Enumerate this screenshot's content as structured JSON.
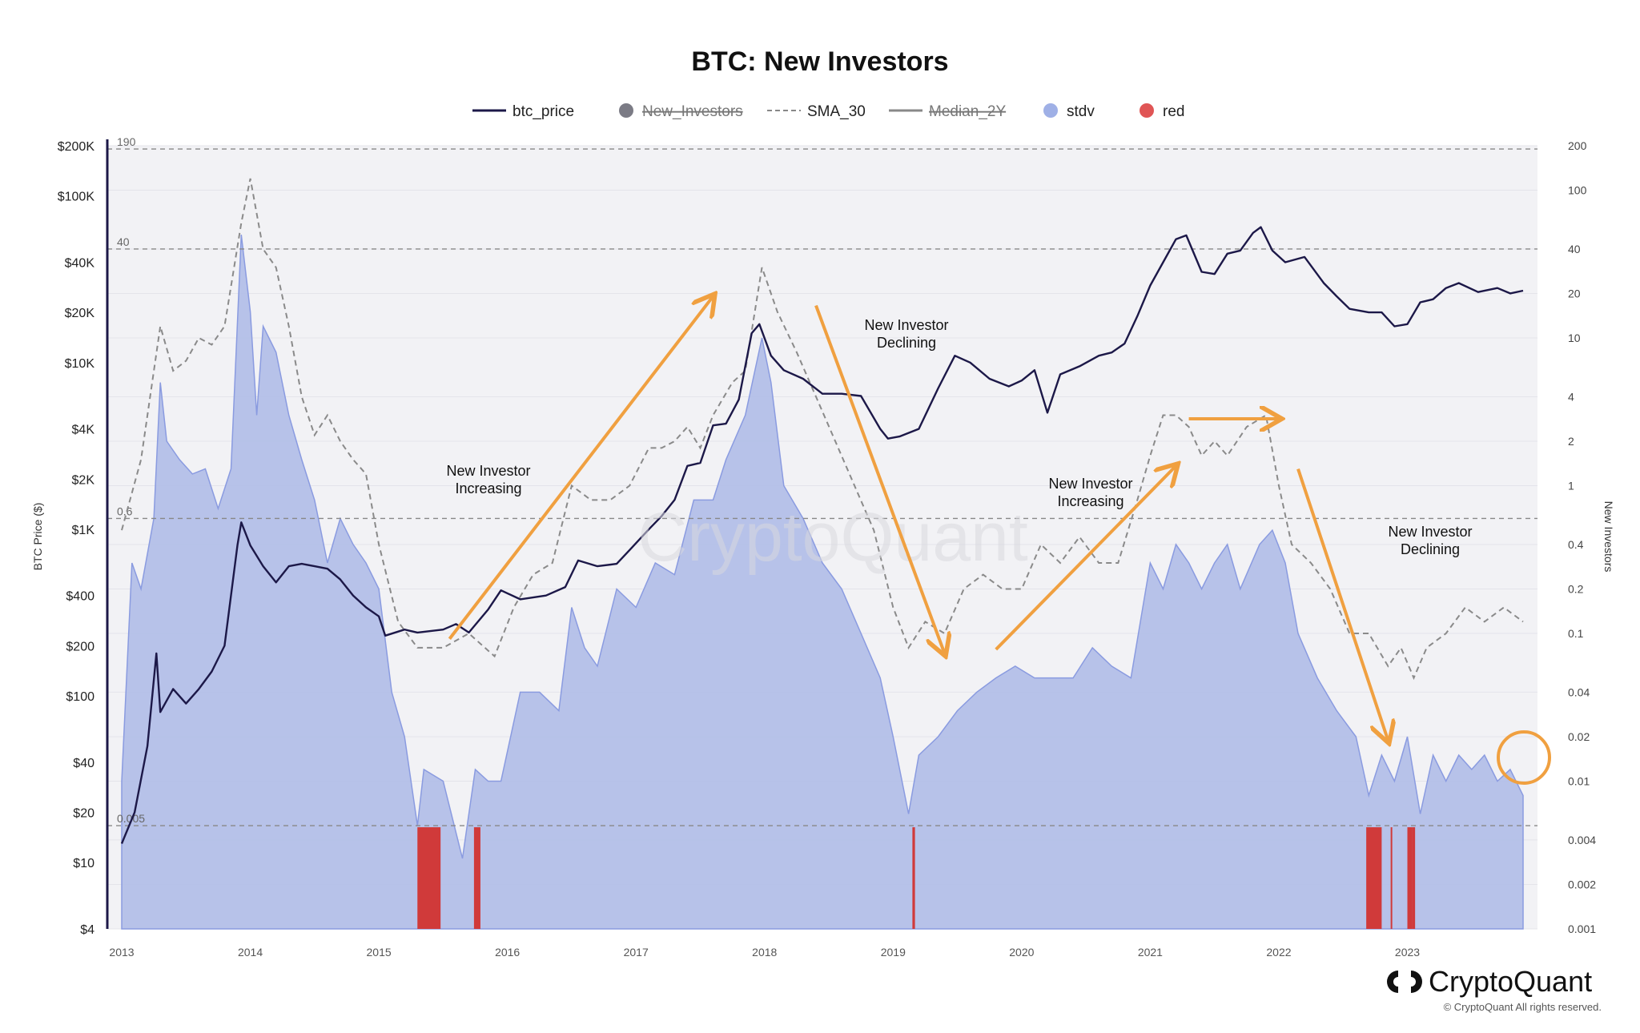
{
  "chart_data": {
    "type": "area",
    "title": "BTC: New Investors",
    "legend": [
      {
        "name": "btc_price",
        "symbol": "line",
        "color": "#1c1848",
        "hidden": false
      },
      {
        "name": "New_Investors",
        "symbol": "dot",
        "color": "#7b7b85",
        "hidden": true
      },
      {
        "name": "SMA_30",
        "symbol": "dashed-line",
        "color": "#888888",
        "hidden": false
      },
      {
        "name": "Median_2Y",
        "symbol": "line",
        "color": "#888888",
        "hidden": true
      },
      {
        "name": "stdv",
        "symbol": "dot",
        "color": "#9fb0e6",
        "hidden": false
      },
      {
        "name": "red",
        "symbol": "dot",
        "color": "#e05555",
        "hidden": false
      }
    ],
    "legend_position": "top-center",
    "x_ticks": [
      "2013",
      "2014",
      "2015",
      "2016",
      "2017",
      "2018",
      "2019",
      "2020",
      "2021",
      "2022",
      "2023"
    ],
    "xlim": [
      2013.0,
      2023.9
    ],
    "y_left": {
      "label": "BTC Price ($)",
      "scale": "log",
      "ticks": [
        "$4",
        "$10",
        "$20",
        "$40",
        "$100",
        "$200",
        "$400",
        "$1K",
        "$2K",
        "$4K",
        "$10K",
        "$20K",
        "$40K",
        "$100K",
        "$200K"
      ],
      "tick_values": [
        4,
        10,
        20,
        40,
        100,
        200,
        400,
        1000,
        2000,
        4000,
        10000,
        20000,
        40000,
        100000,
        200000
      ],
      "range": [
        4,
        200000
      ]
    },
    "y_right": {
      "label": "New Investors",
      "scale": "log",
      "ticks": [
        "0.001",
        "0.002",
        "0.004",
        "0.01",
        "0.02",
        "0.04",
        "0.1",
        "0.2",
        "0.4",
        "1",
        "2",
        "4",
        "10",
        "20",
        "40",
        "100",
        "200"
      ],
      "tick_values": [
        0.001,
        0.002,
        0.004,
        0.01,
        0.02,
        0.04,
        0.1,
        0.2,
        0.4,
        1,
        2,
        4,
        10,
        20,
        40,
        100,
        200
      ],
      "range": [
        0.001,
        200
      ]
    },
    "reference_lines": [
      {
        "label": "190",
        "value": 190
      },
      {
        "label": "40",
        "value": 40
      },
      {
        "label": "0.6",
        "value": 0.6
      },
      {
        "label": "0.005",
        "value": 0.005
      }
    ],
    "series": [
      {
        "name": "btc_price",
        "axis": "left",
        "x": [
          2013.0,
          2013.1,
          2013.2,
          2013.27,
          2013.3,
          2013.4,
          2013.5,
          2013.6,
          2013.7,
          2013.8,
          2013.9,
          2013.93,
          2014.0,
          2014.1,
          2014.2,
          2014.3,
          2014.4,
          2014.5,
          2014.6,
          2014.7,
          2014.8,
          2014.9,
          2015.0,
          2015.05,
          2015.2,
          2015.3,
          2015.5,
          2015.6,
          2015.7,
          2015.85,
          2015.95,
          2016.1,
          2016.3,
          2016.45,
          2016.55,
          2016.7,
          2016.85,
          2016.95,
          2017.1,
          2017.2,
          2017.3,
          2017.4,
          2017.5,
          2017.6,
          2017.7,
          2017.8,
          2017.9,
          2017.96,
          2018.05,
          2018.15,
          2018.3,
          2018.45,
          2018.6,
          2018.75,
          2018.9,
          2018.96,
          2019.05,
          2019.2,
          2019.35,
          2019.48,
          2019.6,
          2019.75,
          2019.9,
          2020.0,
          2020.1,
          2020.2,
          2020.3,
          2020.45,
          2020.6,
          2020.7,
          2020.8,
          2020.9,
          2021.0,
          2021.1,
          2021.2,
          2021.28,
          2021.4,
          2021.5,
          2021.6,
          2021.7,
          2021.8,
          2021.86,
          2021.95,
          2022.05,
          2022.2,
          2022.35,
          2022.45,
          2022.55,
          2022.7,
          2022.8,
          2022.9,
          2023.0,
          2023.1,
          2023.2,
          2023.3,
          2023.4,
          2023.55,
          2023.7,
          2023.8,
          2023.9
        ],
        "values": [
          13,
          20,
          50,
          180,
          80,
          110,
          90,
          110,
          140,
          200,
          800,
          1100,
          800,
          600,
          480,
          600,
          620,
          600,
          580,
          500,
          400,
          340,
          300,
          230,
          250,
          240,
          250,
          270,
          240,
          330,
          430,
          380,
          400,
          450,
          650,
          600,
          620,
          750,
          1000,
          1200,
          1500,
          2400,
          2500,
          4200,
          4300,
          6000,
          15000,
          17000,
          11000,
          9000,
          8000,
          6500,
          6500,
          6300,
          4000,
          3500,
          3600,
          4000,
          7000,
          11000,
          10000,
          8000,
          7200,
          7800,
          9000,
          5000,
          8500,
          9500,
          11000,
          11500,
          13000,
          19000,
          29000,
          40000,
          55000,
          58000,
          35000,
          34000,
          45000,
          47000,
          60000,
          65000,
          47000,
          40000,
          43000,
          30000,
          25000,
          21000,
          20000,
          20000,
          16500,
          17000,
          23000,
          24000,
          28000,
          30000,
          26500,
          28000,
          26000,
          27000
        ]
      },
      {
        "name": "SMA_30",
        "axis": "right",
        "x": [
          2013.0,
          2013.15,
          2013.3,
          2013.4,
          2013.5,
          2013.6,
          2013.7,
          2013.8,
          2013.93,
          2014.0,
          2014.1,
          2014.2,
          2014.3,
          2014.4,
          2014.5,
          2014.6,
          2014.7,
          2014.8,
          2014.9,
          2015.0,
          2015.15,
          2015.3,
          2015.5,
          2015.7,
          2015.9,
          2016.05,
          2016.2,
          2016.35,
          2016.5,
          2016.65,
          2016.8,
          2016.95,
          2017.1,
          2017.2,
          2017.3,
          2017.4,
          2017.5,
          2017.6,
          2017.75,
          2017.85,
          2017.98,
          2018.1,
          2018.25,
          2018.4,
          2018.55,
          2018.7,
          2018.85,
          2019.0,
          2019.12,
          2019.25,
          2019.4,
          2019.55,
          2019.7,
          2019.85,
          2020.0,
          2020.15,
          2020.3,
          2020.45,
          2020.6,
          2020.75,
          2020.9,
          2021.0,
          2021.1,
          2021.2,
          2021.3,
          2021.4,
          2021.5,
          2021.6,
          2021.75,
          2021.9,
          2022.0,
          2022.1,
          2022.25,
          2022.4,
          2022.55,
          2022.7,
          2022.85,
          2022.95,
          2023.05,
          2023.15,
          2023.3,
          2023.45,
          2023.6,
          2023.75,
          2023.9
        ],
        "values": [
          0.5,
          1.5,
          12,
          6,
          7,
          10,
          9,
          12,
          60,
          120,
          40,
          30,
          12,
          4,
          2.2,
          3,
          2,
          1.5,
          1.2,
          0.4,
          0.12,
          0.08,
          0.08,
          0.1,
          0.07,
          0.15,
          0.25,
          0.3,
          1,
          0.8,
          0.8,
          1.0,
          1.8,
          1.8,
          2.0,
          2.5,
          1.8,
          3,
          5,
          6,
          30,
          15,
          8,
          4,
          2,
          1,
          0.5,
          0.15,
          0.08,
          0.12,
          0.1,
          0.2,
          0.25,
          0.2,
          0.2,
          0.4,
          0.3,
          0.45,
          0.3,
          0.3,
          0.8,
          1.6,
          3,
          3,
          2.5,
          1.6,
          2,
          1.6,
          2.5,
          3,
          1,
          0.4,
          0.3,
          0.2,
          0.1,
          0.1,
          0.06,
          0.08,
          0.05,
          0.08,
          0.1,
          0.15,
          0.12,
          0.15,
          0.12
        ]
      },
      {
        "name": "stdv",
        "axis": "right",
        "x": [
          2013.0,
          2013.08,
          2013.15,
          2013.25,
          2013.3,
          2013.35,
          2013.45,
          2013.55,
          2013.65,
          2013.75,
          2013.85,
          2013.93,
          2014.0,
          2014.05,
          2014.1,
          2014.2,
          2014.3,
          2014.4,
          2014.5,
          2014.6,
          2014.7,
          2014.8,
          2014.9,
          2015.0,
          2015.1,
          2015.2,
          2015.3,
          2015.35,
          2015.5,
          2015.65,
          2015.75,
          2015.85,
          2015.95,
          2016.1,
          2016.25,
          2016.4,
          2016.5,
          2016.6,
          2016.7,
          2016.85,
          2017.0,
          2017.15,
          2017.3,
          2017.45,
          2017.6,
          2017.7,
          2017.85,
          2017.98,
          2018.05,
          2018.15,
          2018.3,
          2018.45,
          2018.6,
          2018.75,
          2018.9,
          2019.0,
          2019.12,
          2019.2,
          2019.35,
          2019.5,
          2019.65,
          2019.8,
          2019.95,
          2020.1,
          2020.25,
          2020.4,
          2020.55,
          2020.7,
          2020.85,
          2021.0,
          2021.1,
          2021.2,
          2021.3,
          2021.4,
          2021.5,
          2021.6,
          2021.7,
          2021.85,
          2021.95,
          2022.05,
          2022.15,
          2022.3,
          2022.45,
          2022.6,
          2022.7,
          2022.8,
          2022.9,
          2023.0,
          2023.1,
          2023.2,
          2023.3,
          2023.4,
          2023.5,
          2023.6,
          2023.7,
          2023.8,
          2023.9
        ],
        "values": [
          0.01,
          0.3,
          0.2,
          0.6,
          5,
          2,
          1.5,
          1.2,
          1.3,
          0.7,
          1.3,
          50,
          15,
          3,
          12,
          8,
          3,
          1.5,
          0.8,
          0.3,
          0.6,
          0.4,
          0.3,
          0.2,
          0.04,
          0.02,
          0.005,
          0.012,
          0.01,
          0.003,
          0.012,
          0.01,
          0.01,
          0.04,
          0.04,
          0.03,
          0.15,
          0.08,
          0.06,
          0.2,
          0.15,
          0.3,
          0.25,
          0.8,
          0.8,
          1.5,
          3,
          10,
          5,
          1,
          0.6,
          0.3,
          0.2,
          0.1,
          0.05,
          0.02,
          0.006,
          0.015,
          0.02,
          0.03,
          0.04,
          0.05,
          0.06,
          0.05,
          0.05,
          0.05,
          0.08,
          0.06,
          0.05,
          0.3,
          0.2,
          0.4,
          0.3,
          0.2,
          0.3,
          0.4,
          0.2,
          0.4,
          0.5,
          0.3,
          0.1,
          0.05,
          0.03,
          0.02,
          0.008,
          0.015,
          0.01,
          0.02,
          0.006,
          0.015,
          0.01,
          0.015,
          0.012,
          0.015,
          0.01,
          0.012,
          0.008
        ]
      },
      {
        "name": "red",
        "axis": "right",
        "periods": [
          [
            2015.3,
            2015.48
          ],
          [
            2015.74,
            2015.79
          ],
          [
            2019.15,
            2019.17
          ],
          [
            2022.68,
            2022.8
          ],
          [
            2022.87,
            2022.88
          ],
          [
            2023.0,
            2023.04
          ],
          [
            2023.04,
            2023.06
          ]
        ]
      }
    ],
    "annotations": [
      {
        "text": [
          "New Investor",
          "Increasing"
        ]
      },
      {
        "text": [
          "New  Investor",
          "Declining"
        ]
      },
      {
        "text": [
          "New Investor",
          "Increasing"
        ]
      },
      {
        "text": [
          "New  Investor",
          "Declining"
        ]
      }
    ],
    "watermark": "CryptoQuant",
    "grid": true
  },
  "footer": {
    "brand": "CryptoQuant",
    "copyright": "© CryptoQuant All rights reserved."
  },
  "colors": {
    "price_line": "#1c1848",
    "stdv_fill": "#b3bfe8",
    "stdv_stroke": "#8a9be0",
    "red_fill": "#d03a3a",
    "sma_line": "#8a8a8a",
    "arrow": "#f0a040",
    "plot_bg": "#f2f2f5"
  }
}
